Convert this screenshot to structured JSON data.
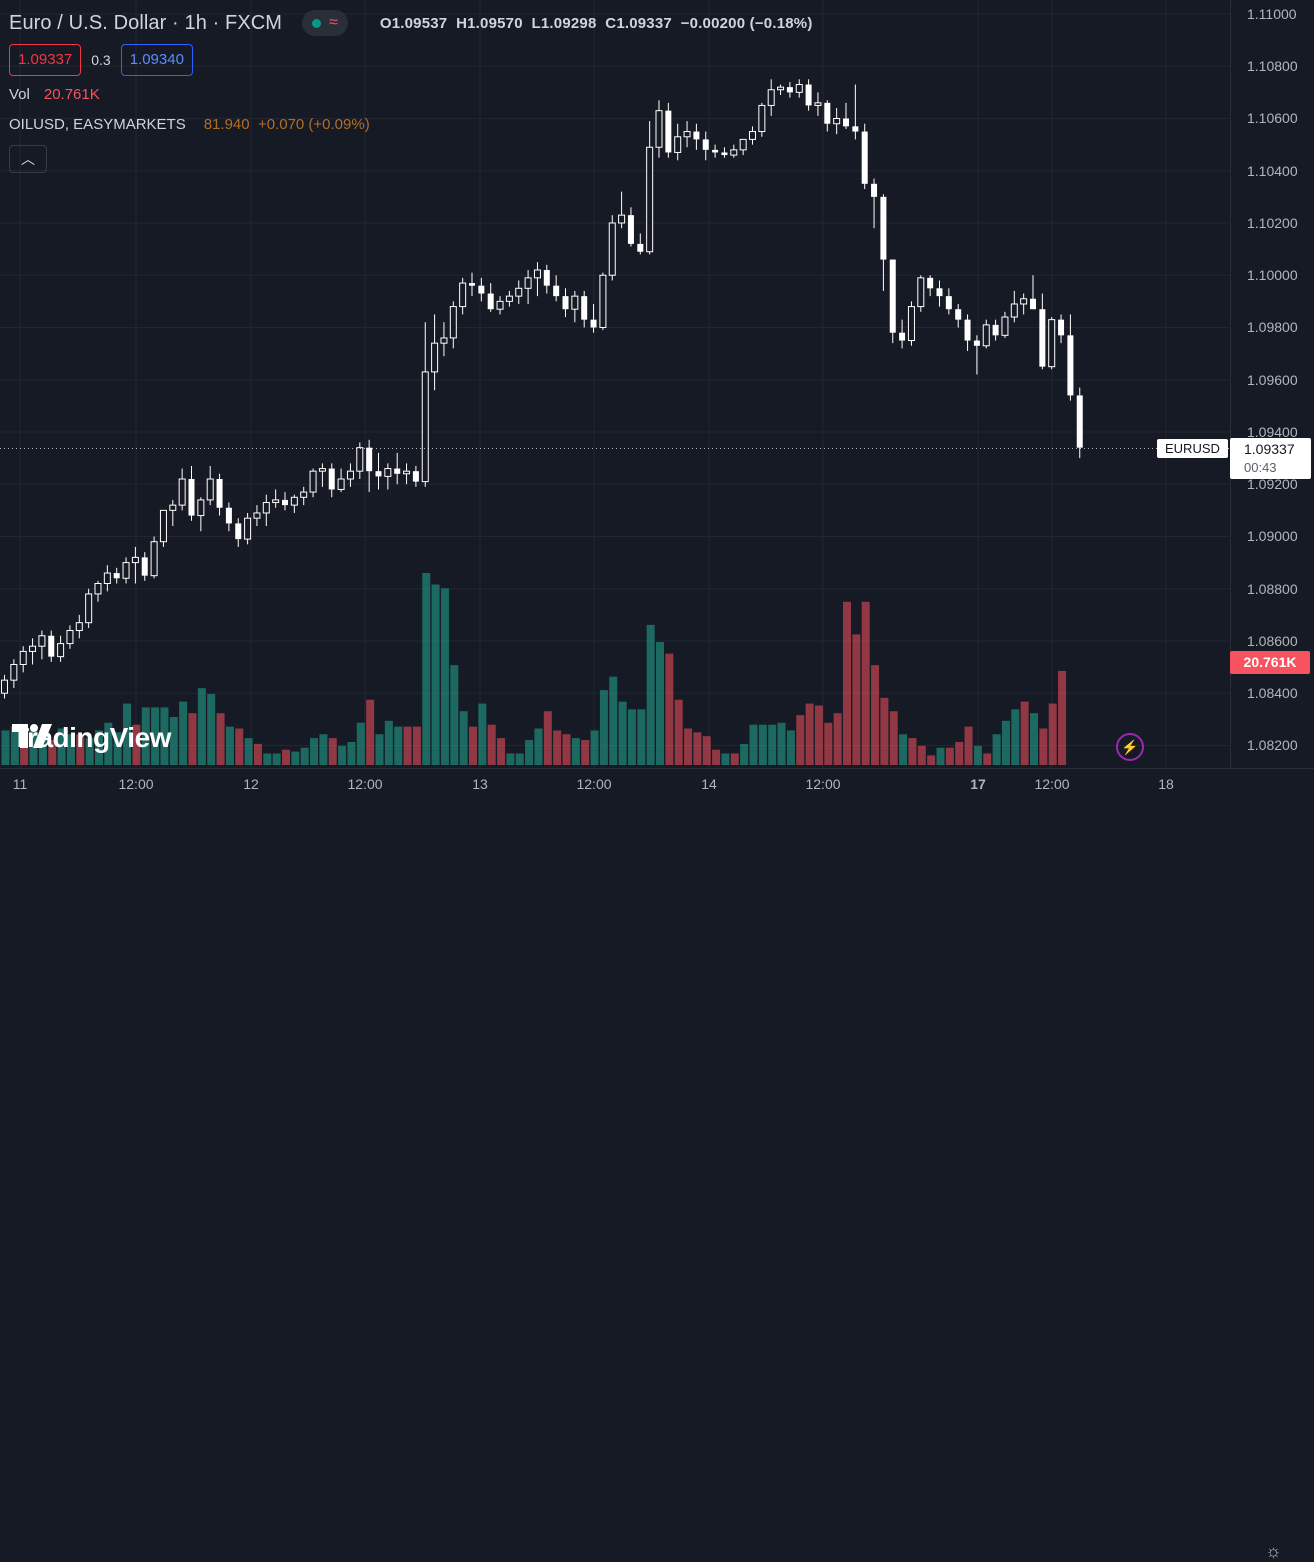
{
  "header": {
    "symbol_title": "Euro / U.S. Dollar · 1h · FXCM",
    "ohlc": {
      "open_label": "O",
      "open": "1.09537",
      "high_label": "H",
      "high": "1.09570",
      "low_label": "L",
      "low": "1.09298",
      "close_label": "C",
      "close": "1.09337",
      "change": "−0.00200 (−0.18%)"
    },
    "status_icons": [
      "market-open-dot",
      "delayed-wave"
    ]
  },
  "trade": {
    "sell_price": "1.09337",
    "spread": "0.3",
    "buy_price": "1.09340"
  },
  "volume_legend": {
    "label": "Vol",
    "value": "20.761K"
  },
  "study": {
    "name": "OILUSD, EASYMARKETS",
    "value": "81.940",
    "change": "+0.070 (+0.09%)"
  },
  "price_scale": {
    "labels": [
      "1.11000",
      "1.10800",
      "1.10600",
      "1.10400",
      "1.10200",
      "1.10000",
      "1.09800",
      "1.09600",
      "1.09400",
      "1.09200",
      "1.09000",
      "1.08800",
      "1.08600",
      "1.08400",
      "1.08200"
    ]
  },
  "time_scale": {
    "labels": [
      {
        "text": "11",
        "bold": false
      },
      {
        "text": "12:00",
        "bold": false
      },
      {
        "text": "12",
        "bold": false
      },
      {
        "text": "12:00",
        "bold": false
      },
      {
        "text": "13",
        "bold": false
      },
      {
        "text": "12:00",
        "bold": false
      },
      {
        "text": "14",
        "bold": false
      },
      {
        "text": "12:00",
        "bold": false
      },
      {
        "text": "17",
        "bold": true
      },
      {
        "text": "12:00",
        "bold": false
      },
      {
        "text": "18",
        "bold": false
      }
    ]
  },
  "current_price": {
    "symbol": "EURUSD",
    "price": "1.09337",
    "countdown": "00:43"
  },
  "volume_tag": "20.761K",
  "branding": {
    "logo_text": "TradingView"
  },
  "colors": {
    "up": "#ffffff",
    "down": "#ffffff",
    "vol_up": "#22ab94",
    "vol_down": "#f7525f",
    "background": "#161a25",
    "grid": "#232632"
  },
  "chart_data": {
    "type": "candlestick",
    "symbol": "EURUSD",
    "interval": "1h",
    "ylim": [
      1.0815,
      1.1105
    ],
    "candles": [
      [
        1.084,
        1.0847,
        1.0838,
        1.0845
      ],
      [
        1.0845,
        1.0853,
        1.0842,
        1.0851
      ],
      [
        1.0851,
        1.0858,
        1.0848,
        1.0856
      ],
      [
        1.0856,
        1.0861,
        1.0851,
        1.0858
      ],
      [
        1.0858,
        1.0864,
        1.0853,
        1.0862
      ],
      [
        1.0862,
        1.0864,
        1.0852,
        1.0854
      ],
      [
        1.0854,
        1.0862,
        1.0852,
        1.0859
      ],
      [
        1.0859,
        1.0866,
        1.0857,
        1.0864
      ],
      [
        1.0864,
        1.087,
        1.0861,
        1.0867
      ],
      [
        1.0867,
        1.088,
        1.0865,
        1.0878
      ],
      [
        1.0878,
        1.0883,
        1.0875,
        1.0882
      ],
      [
        1.0882,
        1.0889,
        1.0879,
        1.0886
      ],
      [
        1.0886,
        1.0888,
        1.0882,
        1.0884
      ],
      [
        1.0884,
        1.0892,
        1.0882,
        1.089
      ],
      [
        1.089,
        1.0896,
        1.0882,
        1.0892
      ],
      [
        1.0892,
        1.0894,
        1.0883,
        1.0885
      ],
      [
        1.0885,
        1.09,
        1.0884,
        1.0898
      ],
      [
        1.0898,
        1.091,
        1.0896,
        1.091
      ],
      [
        1.091,
        1.0914,
        1.0904,
        1.0912
      ],
      [
        1.0912,
        1.0926,
        1.091,
        1.0922
      ],
      [
        1.0922,
        1.0927,
        1.0906,
        1.0908
      ],
      [
        1.0908,
        1.0915,
        1.0902,
        1.0914
      ],
      [
        1.0914,
        1.0927,
        1.0912,
        1.0922
      ],
      [
        1.0922,
        1.0924,
        1.0908,
        1.0911
      ],
      [
        1.0911,
        1.0913,
        1.0902,
        1.0905
      ],
      [
        1.0905,
        1.0907,
        1.0896,
        1.0899
      ],
      [
        1.0899,
        1.0909,
        1.0897,
        1.0907
      ],
      [
        1.0907,
        1.0912,
        1.0904,
        1.0909
      ],
      [
        1.0909,
        1.0916,
        1.0904,
        1.0913
      ],
      [
        1.0913,
        1.0918,
        1.0911,
        1.0914
      ],
      [
        1.0914,
        1.0917,
        1.091,
        1.0912
      ],
      [
        1.0912,
        1.0916,
        1.0909,
        1.0915
      ],
      [
        1.0915,
        1.0919,
        1.0912,
        1.0917
      ],
      [
        1.0917,
        1.0926,
        1.0915,
        1.0925
      ],
      [
        1.0925,
        1.0928,
        1.0919,
        1.0926
      ],
      [
        1.0926,
        1.0928,
        1.0915,
        1.0918
      ],
      [
        1.0918,
        1.0926,
        1.0917,
        1.0922
      ],
      [
        1.0922,
        1.0928,
        1.0919,
        1.0925
      ],
      [
        1.0925,
        1.0936,
        1.0922,
        1.0934
      ],
      [
        1.0934,
        1.0937,
        1.0917,
        1.0925
      ],
      [
        1.0925,
        1.0932,
        1.0918,
        1.0923
      ],
      [
        1.0923,
        1.0928,
        1.0918,
        1.0926
      ],
      [
        1.0926,
        1.0932,
        1.092,
        1.0924
      ],
      [
        1.0924,
        1.0928,
        1.092,
        1.0925
      ],
      [
        1.0925,
        1.0927,
        1.0919,
        1.0921
      ],
      [
        1.0921,
        1.0982,
        1.0919,
        1.0963
      ],
      [
        1.0963,
        1.0985,
        1.0956,
        1.0974
      ],
      [
        1.0974,
        1.0982,
        1.0969,
        1.0976
      ],
      [
        1.0976,
        1.099,
        1.0972,
        1.0988
      ],
      [
        1.0988,
        1.0999,
        1.0985,
        1.0997
      ],
      [
        1.0997,
        1.1001,
        1.0992,
        1.0996
      ],
      [
        1.0996,
        1.0999,
        1.099,
        1.0993
      ],
      [
        1.0993,
        1.0997,
        1.0986,
        1.0987
      ],
      [
        1.0987,
        1.0992,
        1.0985,
        1.099
      ],
      [
        1.099,
        1.0994,
        1.0988,
        1.0992
      ],
      [
        1.0992,
        1.0998,
        1.0989,
        1.0995
      ],
      [
        1.0995,
        1.1002,
        1.0989,
        1.0999
      ],
      [
        1.0999,
        1.1005,
        1.0992,
        1.1002
      ],
      [
        1.1002,
        1.1004,
        1.0993,
        1.0996
      ],
      [
        1.0996,
        1.1,
        1.099,
        1.0992
      ],
      [
        1.0992,
        1.0995,
        1.0984,
        1.0987
      ],
      [
        1.0987,
        1.0994,
        1.0982,
        1.0992
      ],
      [
        1.0992,
        1.0994,
        1.098,
        1.0983
      ],
      [
        1.0983,
        1.0989,
        1.0978,
        1.098
      ],
      [
        1.098,
        1.1001,
        1.0979,
        1.1
      ],
      [
        1.1,
        1.1023,
        1.0998,
        1.102
      ],
      [
        1.102,
        1.1032,
        1.1018,
        1.1023
      ],
      [
        1.1023,
        1.1026,
        1.1011,
        1.1012
      ],
      [
        1.1012,
        1.1016,
        1.1008,
        1.1009
      ],
      [
        1.1009,
        1.1059,
        1.1008,
        1.1049
      ],
      [
        1.1049,
        1.1067,
        1.1045,
        1.1063
      ],
      [
        1.1063,
        1.1066,
        1.1045,
        1.1047
      ],
      [
        1.1047,
        1.1058,
        1.1044,
        1.1053
      ],
      [
        1.1053,
        1.1059,
        1.1049,
        1.1055
      ],
      [
        1.1055,
        1.1058,
        1.1048,
        1.1052
      ],
      [
        1.1052,
        1.1055,
        1.1044,
        1.1048
      ],
      [
        1.1048,
        1.105,
        1.1045,
        1.1047
      ],
      [
        1.1047,
        1.1049,
        1.1045,
        1.1046
      ],
      [
        1.1046,
        1.105,
        1.1045,
        1.1048
      ],
      [
        1.1048,
        1.1052,
        1.1046,
        1.1052
      ],
      [
        1.1052,
        1.1057,
        1.105,
        1.1055
      ],
      [
        1.1055,
        1.1066,
        1.1053,
        1.1065
      ],
      [
        1.1065,
        1.1075,
        1.1061,
        1.1071
      ],
      [
        1.1071,
        1.1073,
        1.1069,
        1.1072
      ],
      [
        1.1072,
        1.1074,
        1.1068,
        1.107
      ],
      [
        1.107,
        1.1075,
        1.1068,
        1.1073
      ],
      [
        1.1073,
        1.1075,
        1.1063,
        1.1065
      ],
      [
        1.1065,
        1.107,
        1.1061,
        1.1066
      ],
      [
        1.1066,
        1.1067,
        1.1055,
        1.1058
      ],
      [
        1.1058,
        1.1064,
        1.1054,
        1.106
      ],
      [
        1.106,
        1.1066,
        1.1056,
        1.1057
      ],
      [
        1.1057,
        1.1073,
        1.1052,
        1.1055
      ],
      [
        1.1055,
        1.1058,
        1.1033,
        1.1035
      ],
      [
        1.1035,
        1.1037,
        1.1018,
        1.103
      ],
      [
        1.103,
        1.1031,
        1.0994,
        1.1006
      ],
      [
        1.1006,
        1.1006,
        1.0974,
        1.0978
      ],
      [
        1.0978,
        1.0983,
        1.0972,
        1.0975
      ],
      [
        1.0975,
        1.099,
        1.0973,
        1.0988
      ],
      [
        1.0988,
        1.1,
        1.0986,
        1.0999
      ],
      [
        1.0999,
        1.1,
        1.0992,
        1.0995
      ],
      [
        1.0995,
        1.0998,
        1.0988,
        1.0992
      ],
      [
        1.0992,
        1.0995,
        1.0985,
        1.0987
      ],
      [
        1.0987,
        1.0989,
        1.098,
        1.0983
      ],
      [
        1.0983,
        1.0985,
        1.0971,
        1.0975
      ],
      [
        1.0975,
        1.0977,
        1.0962,
        1.0973
      ],
      [
        1.0973,
        1.0983,
        1.0972,
        1.0981
      ],
      [
        1.0981,
        1.0983,
        1.0975,
        1.0977
      ],
      [
        1.0977,
        1.0986,
        1.0976,
        1.0984
      ],
      [
        1.0984,
        1.0994,
        1.0982,
        1.0989
      ],
      [
        1.0989,
        1.0993,
        1.0985,
        1.0991
      ],
      [
        1.0991,
        1.1,
        1.0987,
        1.0987
      ],
      [
        1.0987,
        1.0993,
        1.0964,
        1.0965
      ],
      [
        1.0965,
        1.0984,
        1.0964,
        1.0983
      ],
      [
        1.0983,
        1.0985,
        1.0974,
        1.0977
      ],
      [
        1.0977,
        1.0985,
        1.0952,
        1.0954
      ],
      [
        1.0954,
        1.0957,
        1.093,
        1.0934
      ]
    ],
    "volume": [
      [
        0.18,
        1
      ],
      [
        0.2,
        1
      ],
      [
        0.19,
        0
      ],
      [
        0.19,
        1
      ],
      [
        0.16,
        1
      ],
      [
        0.13,
        0
      ],
      [
        0.19,
        1
      ],
      [
        0.16,
        1
      ],
      [
        0.16,
        0
      ],
      [
        0.14,
        1
      ],
      [
        0.18,
        1
      ],
      [
        0.22,
        1
      ],
      [
        0.17,
        1
      ],
      [
        0.32,
        1
      ],
      [
        0.21,
        0
      ],
      [
        0.3,
        1
      ],
      [
        0.3,
        1
      ],
      [
        0.3,
        1
      ],
      [
        0.25,
        1
      ],
      [
        0.33,
        1
      ],
      [
        0.27,
        0
      ],
      [
        0.4,
        1
      ],
      [
        0.37,
        1
      ],
      [
        0.27,
        0
      ],
      [
        0.2,
        1
      ],
      [
        0.19,
        0
      ],
      [
        0.14,
        1
      ],
      [
        0.11,
        0
      ],
      [
        0.06,
        1
      ],
      [
        0.06,
        1
      ],
      [
        0.08,
        0
      ],
      [
        0.07,
        1
      ],
      [
        0.09,
        1
      ],
      [
        0.14,
        1
      ],
      [
        0.16,
        1
      ],
      [
        0.14,
        0
      ],
      [
        0.1,
        1
      ],
      [
        0.12,
        1
      ],
      [
        0.22,
        1
      ],
      [
        0.34,
        0
      ],
      [
        0.16,
        1
      ],
      [
        0.23,
        1
      ],
      [
        0.2,
        1
      ],
      [
        0.2,
        0
      ],
      [
        0.2,
        0
      ],
      [
        1.0,
        1
      ],
      [
        0.94,
        1
      ],
      [
        0.92,
        1
      ],
      [
        0.52,
        1
      ],
      [
        0.28,
        1
      ],
      [
        0.2,
        0
      ],
      [
        0.32,
        1
      ],
      [
        0.21,
        0
      ],
      [
        0.14,
        0
      ],
      [
        0.06,
        1
      ],
      [
        0.06,
        1
      ],
      [
        0.13,
        1
      ],
      [
        0.19,
        1
      ],
      [
        0.28,
        0
      ],
      [
        0.18,
        0
      ],
      [
        0.16,
        0
      ],
      [
        0.14,
        1
      ],
      [
        0.13,
        0
      ],
      [
        0.18,
        1
      ],
      [
        0.39,
        1
      ],
      [
        0.46,
        1
      ],
      [
        0.33,
        1
      ],
      [
        0.29,
        1
      ],
      [
        0.29,
        1
      ],
      [
        0.73,
        1
      ],
      [
        0.64,
        1
      ],
      [
        0.58,
        0
      ],
      [
        0.34,
        0
      ],
      [
        0.19,
        0
      ],
      [
        0.17,
        0
      ],
      [
        0.15,
        0
      ],
      [
        0.08,
        0
      ],
      [
        0.06,
        1
      ],
      [
        0.06,
        0
      ],
      [
        0.11,
        1
      ],
      [
        0.21,
        1
      ],
      [
        0.21,
        1
      ],
      [
        0.21,
        1
      ],
      [
        0.22,
        1
      ],
      [
        0.18,
        1
      ],
      [
        0.26,
        0
      ],
      [
        0.32,
        0
      ],
      [
        0.31,
        0
      ],
      [
        0.22,
        0
      ],
      [
        0.27,
        0
      ],
      [
        0.85,
        0
      ],
      [
        0.68,
        0
      ],
      [
        0.85,
        0
      ],
      [
        0.52,
        0
      ],
      [
        0.35,
        0
      ],
      [
        0.28,
        0
      ],
      [
        0.16,
        1
      ],
      [
        0.14,
        0
      ],
      [
        0.1,
        0
      ],
      [
        0.05,
        0
      ],
      [
        0.09,
        1
      ],
      [
        0.09,
        0
      ],
      [
        0.12,
        0
      ],
      [
        0.2,
        0
      ],
      [
        0.1,
        1
      ],
      [
        0.06,
        0
      ],
      [
        0.16,
        1
      ],
      [
        0.23,
        1
      ],
      [
        0.29,
        1
      ],
      [
        0.33,
        0
      ],
      [
        0.27,
        1
      ],
      [
        0.19,
        0
      ],
      [
        0.32,
        0
      ],
      [
        0.49,
        0
      ]
    ]
  }
}
